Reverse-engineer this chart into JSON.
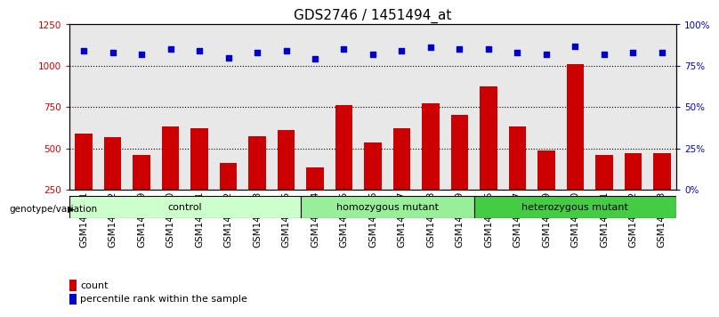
{
  "title": "GDS2746 / 1451494_at",
  "samples": [
    "GSM147451",
    "GSM147452",
    "GSM147459",
    "GSM147460",
    "GSM147461",
    "GSM147462",
    "GSM147463",
    "GSM147465",
    "GSM147514",
    "GSM147515",
    "GSM147516",
    "GSM147517",
    "GSM147518",
    "GSM147519",
    "GSM147506",
    "GSM147507",
    "GSM147509",
    "GSM147510",
    "GSM147511",
    "GSM147512",
    "GSM147513"
  ],
  "counts": [
    590,
    570,
    460,
    635,
    620,
    415,
    575,
    610,
    385,
    760,
    535,
    625,
    775,
    705,
    875,
    635,
    490,
    1010,
    460,
    470,
    470
  ],
  "percentiles": [
    84,
    83,
    82,
    85,
    84,
    80,
    83,
    84,
    79,
    85,
    82,
    84,
    86,
    85,
    85,
    83,
    82,
    87,
    82,
    83,
    83
  ],
  "groups": [
    {
      "label": "control",
      "start": 0,
      "end": 8,
      "color": "#ccffcc"
    },
    {
      "label": "homozygous mutant",
      "start": 8,
      "end": 14,
      "color": "#99ee99"
    },
    {
      "label": "heterozygous mutant",
      "start": 14,
      "end": 21,
      "color": "#44cc44"
    }
  ],
  "bar_color": "#cc0000",
  "dot_color": "#0000cc",
  "ylim_left": [
    250,
    1250
  ],
  "ylim_right": [
    0,
    100
  ],
  "yticks_left": [
    250,
    500,
    750,
    1000,
    1250
  ],
  "yticks_right": [
    0,
    25,
    50,
    75,
    100
  ],
  "ylabel_left_color": "#cc0000",
  "ylabel_right_color": "#0000cc",
  "plot_bg_color": "#e8e8e8",
  "title_fontsize": 11,
  "tick_fontsize": 7.5,
  "legend_count_color": "#cc0000",
  "legend_pct_color": "#0000cc"
}
